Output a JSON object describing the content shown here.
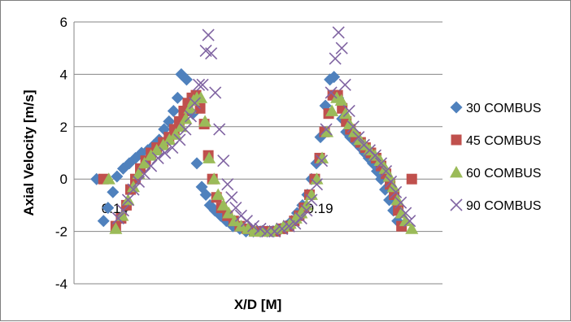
{
  "chart_data": {
    "type": "scatter",
    "title": "",
    "xlabel": "X/D [M]",
    "ylabel": "Axial Velocity [m/s]",
    "xlim": [
      0.13,
      0.22
    ],
    "ylim": [
      -4,
      6
    ],
    "y_ticks": [
      "-4",
      "-2",
      "0",
      "2",
      "4",
      "6"
    ],
    "x_tick_labels": [
      "0.14",
      "0.19"
    ],
    "x_tick_values": [
      0.14,
      0.19
    ],
    "grid": "horizontal",
    "legend_position": "right",
    "colors": {
      "30 COMBUS": "#4f81bd",
      "45 COMBUS": "#c0504d",
      "60 COMBUS": "#9bbb59",
      "90 COMBUS": "#8064a2"
    },
    "markers": {
      "30 COMBUS": "diamond",
      "45 COMBUS": "square",
      "60 COMBUS": "triangle",
      "90 COMBUS": "x"
    },
    "series": [
      {
        "name": "30 COMBUS",
        "points": [
          [
            0.1355,
            0.0
          ],
          [
            0.1372,
            -1.6
          ],
          [
            0.1383,
            -1.1
          ],
          [
            0.1395,
            -0.5
          ],
          [
            0.1405,
            0.1
          ],
          [
            0.142,
            0.4
          ],
          [
            0.1435,
            0.6
          ],
          [
            0.145,
            0.8
          ],
          [
            0.1465,
            1.0
          ],
          [
            0.148,
            1.1
          ],
          [
            0.1495,
            1.3
          ],
          [
            0.1508,
            1.5
          ],
          [
            0.152,
            1.9
          ],
          [
            0.1532,
            2.2
          ],
          [
            0.1543,
            2.6
          ],
          [
            0.1553,
            3.1
          ],
          [
            0.1562,
            4.0
          ],
          [
            0.1575,
            3.8
          ],
          [
            0.159,
            2.5
          ],
          [
            0.16,
            0.6
          ],
          [
            0.1612,
            -0.3
          ],
          [
            0.1622,
            -0.6
          ],
          [
            0.1632,
            -1.0
          ],
          [
            0.1644,
            -1.2
          ],
          [
            0.1658,
            -1.4
          ],
          [
            0.1672,
            -1.6
          ],
          [
            0.1688,
            -1.8
          ],
          [
            0.1705,
            -1.9
          ],
          [
            0.172,
            -2.0
          ],
          [
            0.1738,
            -2.0
          ],
          [
            0.1755,
            -2.0
          ],
          [
            0.1772,
            -2.0
          ],
          [
            0.1788,
            -2.0
          ],
          [
            0.1805,
            -1.9
          ],
          [
            0.1818,
            -1.8
          ],
          [
            0.1832,
            -1.6
          ],
          [
            0.1845,
            -1.3
          ],
          [
            0.1858,
            -1.0
          ],
          [
            0.187,
            -0.6
          ],
          [
            0.188,
            0.0
          ],
          [
            0.1892,
            0.6
          ],
          [
            0.1902,
            1.6
          ],
          [
            0.1914,
            2.8
          ],
          [
            0.1925,
            3.8
          ],
          [
            0.1935,
            3.9
          ],
          [
            0.1945,
            3.1
          ],
          [
            0.1955,
            2.3
          ],
          [
            0.1965,
            1.8
          ],
          [
            0.1975,
            1.6
          ],
          [
            0.1988,
            1.4
          ],
          [
            0.2,
            1.2
          ],
          [
            0.201,
            1.0
          ],
          [
            0.202,
            0.8
          ],
          [
            0.203,
            0.6
          ],
          [
            0.204,
            0.3
          ],
          [
            0.205,
            0.0
          ],
          [
            0.206,
            -0.4
          ],
          [
            0.207,
            -0.8
          ],
          [
            0.208,
            -1.2
          ],
          [
            0.209,
            -1.6
          ]
        ]
      },
      {
        "name": "45 COMBUS",
        "points": [
          [
            0.1372,
            0.0
          ],
          [
            0.1402,
            -1.8
          ],
          [
            0.1415,
            -1.5
          ],
          [
            0.1428,
            -1.0
          ],
          [
            0.1438,
            -0.4
          ],
          [
            0.145,
            0.0
          ],
          [
            0.1462,
            0.4
          ],
          [
            0.1475,
            0.7
          ],
          [
            0.1488,
            1.0
          ],
          [
            0.1502,
            1.2
          ],
          [
            0.1518,
            1.4
          ],
          [
            0.1532,
            1.6
          ],
          [
            0.1545,
            1.9
          ],
          [
            0.1557,
            2.2
          ],
          [
            0.1568,
            2.6
          ],
          [
            0.1578,
            2.9
          ],
          [
            0.1588,
            3.1
          ],
          [
            0.1598,
            3.2
          ],
          [
            0.1608,
            2.7
          ],
          [
            0.1618,
            2.1
          ],
          [
            0.1628,
            0.9
          ],
          [
            0.1638,
            0.0
          ],
          [
            0.1648,
            -0.7
          ],
          [
            0.166,
            -1.1
          ],
          [
            0.1675,
            -1.4
          ],
          [
            0.169,
            -1.6
          ],
          [
            0.1705,
            -1.8
          ],
          [
            0.1722,
            -1.9
          ],
          [
            0.174,
            -2.0
          ],
          [
            0.1758,
            -2.0
          ],
          [
            0.1775,
            -2.0
          ],
          [
            0.1792,
            -2.0
          ],
          [
            0.181,
            -1.9
          ],
          [
            0.1825,
            -1.8
          ],
          [
            0.1838,
            -1.6
          ],
          [
            0.185,
            -1.4
          ],
          [
            0.1862,
            -1.1
          ],
          [
            0.1875,
            -0.6
          ],
          [
            0.1888,
            0.0
          ],
          [
            0.19,
            0.8
          ],
          [
            0.1912,
            1.8
          ],
          [
            0.1922,
            2.5
          ],
          [
            0.1932,
            3.2
          ],
          [
            0.1944,
            3.2
          ],
          [
            0.1955,
            2.7
          ],
          [
            0.1965,
            2.2
          ],
          [
            0.1975,
            1.9
          ],
          [
            0.1988,
            1.6
          ],
          [
            0.2,
            1.4
          ],
          [
            0.2012,
            1.2
          ],
          [
            0.2025,
            1.0
          ],
          [
            0.2038,
            0.8
          ],
          [
            0.205,
            0.5
          ],
          [
            0.2062,
            0.2
          ],
          [
            0.2072,
            -0.2
          ],
          [
            0.2082,
            -0.6
          ],
          [
            0.2092,
            -1.2
          ],
          [
            0.21,
            -1.8
          ],
          [
            0.2125,
            0.0
          ]
        ]
      },
      {
        "name": "60 COMBUS",
        "points": [
          [
            0.1385,
            0.0
          ],
          [
            0.1402,
            -1.9
          ],
          [
            0.1418,
            -1.4
          ],
          [
            0.1432,
            -0.8
          ],
          [
            0.1445,
            -0.3
          ],
          [
            0.1458,
            0.2
          ],
          [
            0.1472,
            0.6
          ],
          [
            0.1488,
            0.9
          ],
          [
            0.1502,
            1.1
          ],
          [
            0.1518,
            1.3
          ],
          [
            0.1533,
            1.5
          ],
          [
            0.1548,
            1.7
          ],
          [
            0.1562,
            2.0
          ],
          [
            0.1573,
            2.3
          ],
          [
            0.1583,
            2.7
          ],
          [
            0.1592,
            3.0
          ],
          [
            0.16,
            3.1
          ],
          [
            0.161,
            3.1
          ],
          [
            0.162,
            2.2
          ],
          [
            0.163,
            0.8
          ],
          [
            0.1642,
            0.0
          ],
          [
            0.1652,
            -0.6
          ],
          [
            0.1665,
            -1.0
          ],
          [
            0.1678,
            -1.3
          ],
          [
            0.1692,
            -1.6
          ],
          [
            0.1708,
            -1.8
          ],
          [
            0.1725,
            -1.9
          ],
          [
            0.1742,
            -2.0
          ],
          [
            0.176,
            -2.0
          ],
          [
            0.1778,
            -2.0
          ],
          [
            0.1795,
            -1.9
          ],
          [
            0.1812,
            -1.8
          ],
          [
            0.1828,
            -1.7
          ],
          [
            0.1842,
            -1.5
          ],
          [
            0.1855,
            -1.3
          ],
          [
            0.1868,
            -1.0
          ],
          [
            0.188,
            -0.6
          ],
          [
            0.1893,
            0.0
          ],
          [
            0.1906,
            0.8
          ],
          [
            0.1918,
            1.8
          ],
          [
            0.193,
            2.6
          ],
          [
            0.1942,
            3.1
          ],
          [
            0.1953,
            3.0
          ],
          [
            0.1963,
            2.5
          ],
          [
            0.1973,
            2.1
          ],
          [
            0.1985,
            1.8
          ],
          [
            0.1998,
            1.5
          ],
          [
            0.201,
            1.3
          ],
          [
            0.2022,
            1.1
          ],
          [
            0.2035,
            0.9
          ],
          [
            0.2048,
            0.7
          ],
          [
            0.206,
            0.4
          ],
          [
            0.207,
            0.1
          ],
          [
            0.208,
            -0.3
          ],
          [
            0.209,
            -0.8
          ],
          [
            0.21,
            -1.3
          ],
          [
            0.211,
            -1.6
          ],
          [
            0.2125,
            -1.9
          ]
        ]
      },
      {
        "name": "90 COMBUS",
        "points": [
          [
            0.1408,
            -1.5
          ],
          [
            0.142,
            -1.2
          ],
          [
            0.1432,
            -0.8
          ],
          [
            0.1445,
            -0.4
          ],
          [
            0.1458,
            -0.1
          ],
          [
            0.1472,
            0.2
          ],
          [
            0.1488,
            0.5
          ],
          [
            0.1505,
            0.8
          ],
          [
            0.1522,
            1.0
          ],
          [
            0.154,
            1.2
          ],
          [
            0.1558,
            1.5
          ],
          [
            0.1572,
            1.9
          ],
          [
            0.1585,
            2.4
          ],
          [
            0.1595,
            2.9
          ],
          [
            0.1605,
            3.6
          ],
          [
            0.1614,
            3.6
          ],
          [
            0.1622,
            4.9
          ],
          [
            0.1628,
            5.5
          ],
          [
            0.1635,
            4.8
          ],
          [
            0.1645,
            3.3
          ],
          [
            0.1655,
            1.9
          ],
          [
            0.1665,
            0.7
          ],
          [
            0.1675,
            -0.2
          ],
          [
            0.1685,
            -0.7
          ],
          [
            0.1695,
            -1.1
          ],
          [
            0.1708,
            -1.4
          ],
          [
            0.1722,
            -1.6
          ],
          [
            0.1738,
            -1.8
          ],
          [
            0.1755,
            -1.9
          ],
          [
            0.1772,
            -2.0
          ],
          [
            0.179,
            -2.0
          ],
          [
            0.1808,
            -1.9
          ],
          [
            0.1825,
            -1.8
          ],
          [
            0.184,
            -1.7
          ],
          [
            0.1855,
            -1.5
          ],
          [
            0.1868,
            -1.2
          ],
          [
            0.188,
            -0.8
          ],
          [
            0.1893,
            -0.2
          ],
          [
            0.1905,
            0.7
          ],
          [
            0.1916,
            1.9
          ],
          [
            0.1928,
            3.3
          ],
          [
            0.1938,
            4.6
          ],
          [
            0.1946,
            5.6
          ],
          [
            0.1954,
            5.0
          ],
          [
            0.1962,
            3.6
          ],
          [
            0.1972,
            2.6
          ],
          [
            0.1982,
            2.0
          ],
          [
            0.1995,
            1.6
          ],
          [
            0.2008,
            1.3
          ],
          [
            0.2022,
            1.1
          ],
          [
            0.2036,
            0.9
          ],
          [
            0.205,
            0.6
          ],
          [
            0.2062,
            0.3
          ],
          [
            0.2074,
            -0.1
          ],
          [
            0.2086,
            -0.5
          ],
          [
            0.2098,
            -0.9
          ],
          [
            0.211,
            -1.3
          ],
          [
            0.212,
            -1.6
          ]
        ]
      }
    ]
  }
}
